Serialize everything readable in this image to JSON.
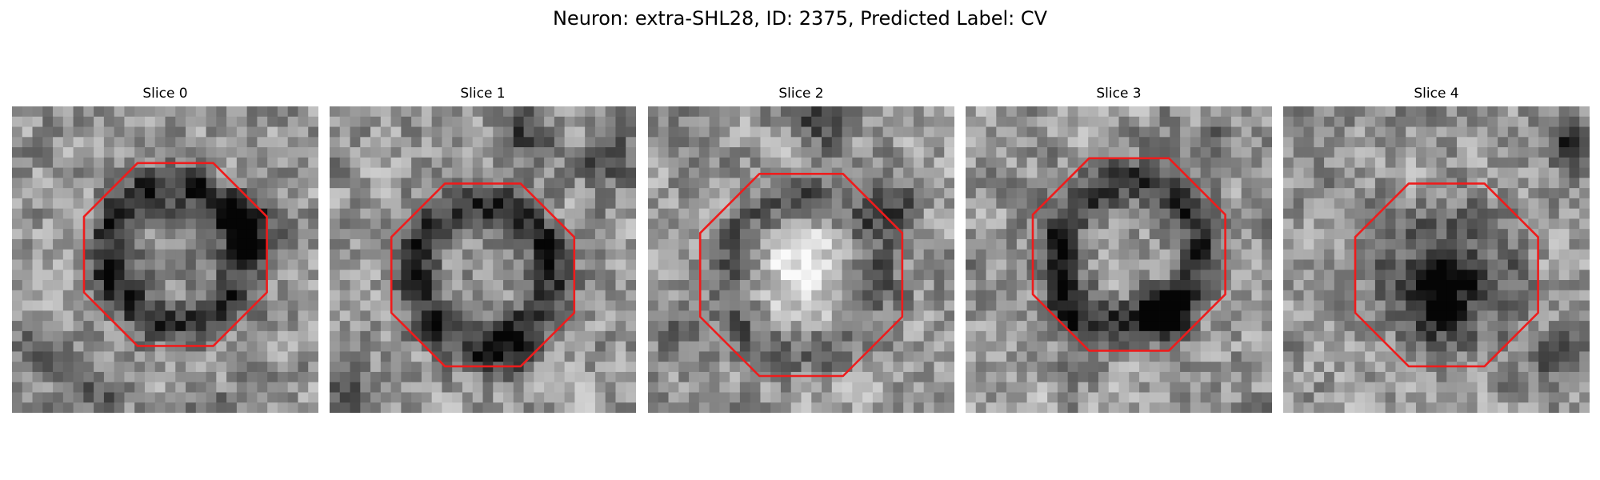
{
  "figure": {
    "title": "Neuron: extra-SHL28, ID: 2375, Predicted Label: CV"
  },
  "colors": {
    "outline": "#ee1c1c",
    "background": "#ffffff",
    "image_colormap": "grayscale"
  },
  "panels": [
    {
      "title": "Slice 0",
      "seed": 11,
      "ring": 0.45,
      "center": 0.1,
      "blobs": [
        [
          23,
          11,
          0.55
        ],
        [
          8,
          28,
          0.3
        ],
        [
          3,
          24,
          0.3
        ],
        [
          19,
          30,
          0.25
        ]
      ]
    },
    {
      "title": "Slice 1",
      "seed": 23,
      "ring": 0.4,
      "center": 0.05,
      "blobs": [
        [
          19,
          3,
          0.35
        ],
        [
          17,
          24,
          0.3
        ],
        [
          27,
          5,
          0.3
        ],
        [
          2,
          28,
          0.2
        ]
      ]
    },
    {
      "title": "Slice 2",
      "seed": 37,
      "ring": 0.25,
      "center": -0.35,
      "blobs": [
        [
          17,
          1,
          0.45
        ],
        [
          24,
          10,
          0.3
        ],
        [
          3,
          22,
          0.2
        ]
      ]
    },
    {
      "title": "Slice 3",
      "seed": 41,
      "ring": 0.4,
      "center": 0.0,
      "blobs": [
        [
          19,
          20,
          0.45
        ],
        [
          10,
          21,
          0.3
        ],
        [
          25,
          4,
          0.2
        ]
      ]
    },
    {
      "title": "Slice 4",
      "seed": 53,
      "ring": 0.1,
      "center": 0.55,
      "blobs": [
        [
          28,
          4,
          0.45
        ],
        [
          26,
          24,
          0.3
        ],
        [
          15,
          20,
          0.35
        ]
      ]
    }
  ]
}
